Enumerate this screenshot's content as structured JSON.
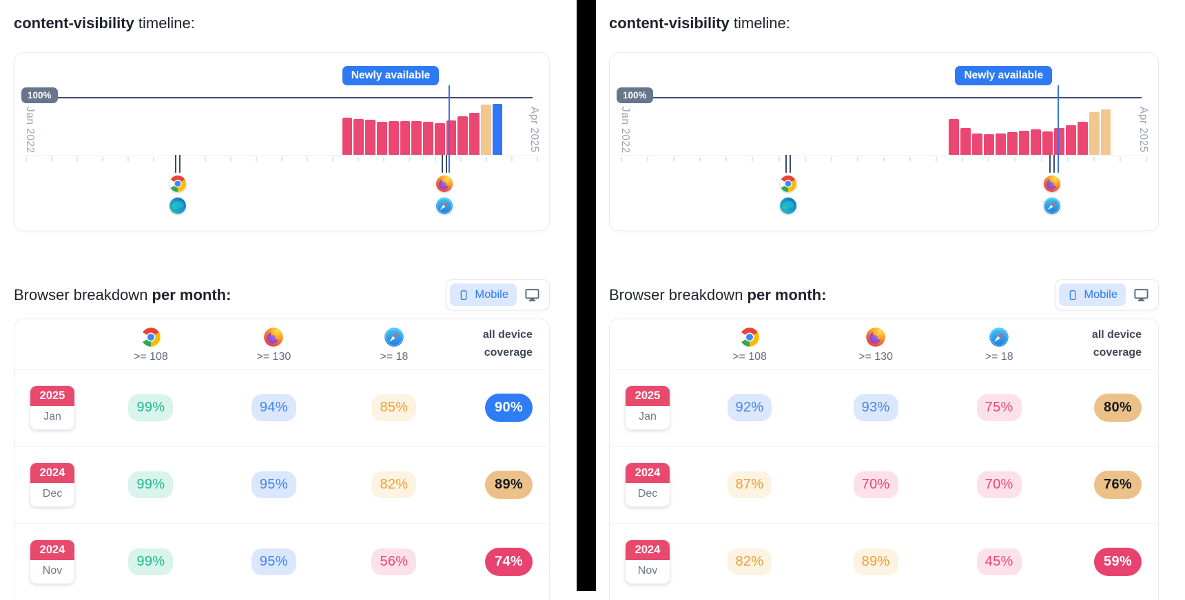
{
  "colors": {
    "accent_blue": "#2e7af5",
    "bar_pink": "#ec4672",
    "bar_tan": "#f2c68f",
    "bar_blue": "#3076f5",
    "navy_line": "#3b4a68",
    "gray_badge": "#68768b",
    "year_badge_pink": "#e84a6e",
    "tone_green": "#1db992",
    "tone_blue": "#4285f4",
    "tone_orange": "#f59d31",
    "tone_pink": "#f0437a",
    "solid_tan": "#ecc189",
    "divider_black": "#000000"
  },
  "chart_data": [
    {
      "type": "bar",
      "title": "content-visibility timeline (left panel)",
      "x_range": [
        "Jan 2022",
        "Apr 2025"
      ],
      "reference_line": {
        "label": "100%",
        "value": 100
      },
      "annotation": "Newly available",
      "values": [
        66,
        63,
        62,
        59,
        60,
        60,
        60,
        58,
        56,
        61,
        68,
        74,
        89,
        90
      ],
      "bar_colors": [
        "pink",
        "pink",
        "pink",
        "pink",
        "pink",
        "pink",
        "pink",
        "pink",
        "pink",
        "pink",
        "pink",
        "pink",
        "tan",
        "blue"
      ],
      "browser_markers": [
        {
          "browsers": [
            "chrome",
            "edge"
          ],
          "position_pct": 30.5
        },
        {
          "browsers": [
            "firefox",
            "safari"
          ],
          "position_pct": 80.4
        }
      ]
    },
    {
      "type": "bar",
      "title": "content-visibility timeline (right panel)",
      "x_range": [
        "Jan 2022",
        "Apr 2025"
      ],
      "reference_line": {
        "label": "100%",
        "value": 100
      },
      "annotation": "Newly available",
      "values": [
        64,
        47,
        38,
        36,
        38,
        40,
        43,
        45,
        42,
        47,
        53,
        59,
        76,
        80
      ],
      "bar_colors": [
        "pink",
        "pink",
        "pink",
        "pink",
        "pink",
        "pink",
        "pink",
        "pink",
        "pink",
        "pink",
        "pink",
        "pink",
        "tan",
        "tan"
      ],
      "browser_markers": [
        {
          "browsers": [
            "chrome",
            "edge"
          ],
          "position_pct": 32.5
        },
        {
          "browsers": [
            "firefox",
            "safari"
          ],
          "position_pct": 80.7
        }
      ]
    },
    {
      "type": "table",
      "title": "Browser breakdown per month (left panel, Mobile)",
      "columns": [
        "month",
        "chrome >= 108",
        "firefox >= 130",
        "safari >= 18",
        "all device coverage"
      ],
      "rows": [
        [
          "Jan 2025",
          "99%",
          "94%",
          "85%",
          "90%"
        ],
        [
          "Dec 2024",
          "99%",
          "95%",
          "82%",
          "89%"
        ],
        [
          "Nov 2024",
          "99%",
          "95%",
          "56%",
          "74%"
        ]
      ]
    },
    {
      "type": "table",
      "title": "Browser breakdown per month (right panel, Mobile)",
      "columns": [
        "month",
        "chrome >= 108",
        "firefox >= 130",
        "safari >= 18",
        "all device coverage"
      ],
      "rows": [
        [
          "Jan 2025",
          "92%",
          "93%",
          "75%",
          "80%"
        ],
        [
          "Dec 2024",
          "87%",
          "70%",
          "70%",
          "76%"
        ],
        [
          "Nov 2024",
          "82%",
          "89%",
          "45%",
          "59%"
        ]
      ]
    }
  ],
  "panels": [
    {
      "heading": {
        "code": "content-visibility",
        "rest": " timeline:"
      },
      "timeline": {
        "badge": "Newly available",
        "y_label": "100%",
        "x_start": "Jan 2022",
        "x_end": "Apr 2025",
        "badge_left_pct": 61.3,
        "annotation_x_pct": 81.2,
        "bars_left_pct": 61.3,
        "bars_width_pct": 30.0,
        "bars": [
          {
            "v": 66,
            "c": "pink"
          },
          {
            "v": 63,
            "c": "pink"
          },
          {
            "v": 62,
            "c": "pink"
          },
          {
            "v": 59,
            "c": "pink"
          },
          {
            "v": 60,
            "c": "pink"
          },
          {
            "v": 60,
            "c": "pink"
          },
          {
            "v": 60,
            "c": "pink"
          },
          {
            "v": 58,
            "c": "pink"
          },
          {
            "v": 56,
            "c": "pink"
          },
          {
            "v": 61,
            "c": "pink"
          },
          {
            "v": 68,
            "c": "pink"
          },
          {
            "v": 74,
            "c": "pink"
          },
          {
            "v": 89,
            "c": "tan"
          },
          {
            "v": 90,
            "c": "blue"
          }
        ],
        "markers": [
          {
            "x_pct": 30.5,
            "icons": [
              "chrome",
              "edge"
            ]
          },
          {
            "x_pct": 80.4,
            "icons": [
              "firefox",
              "safari"
            ]
          }
        ]
      },
      "breakdown": {
        "heading_pre": "Browser breakdown ",
        "heading_bold": "per month:",
        "toggle": {
          "mobile": "Mobile"
        },
        "table": {
          "columns": [
            {
              "browser": "chrome",
              "version": ">= 108"
            },
            {
              "browser": "firefox",
              "version": ">= 130"
            },
            {
              "browser": "safari",
              "version": ">= 18"
            }
          ],
          "coverage_header_line1": "all device",
          "coverage_header_line2": "coverage",
          "rows": [
            {
              "year": "2025",
              "month": "Jan",
              "cells": [
                {
                  "v": "99%",
                  "tone": "green"
                },
                {
                  "v": "94%",
                  "tone": "blue"
                },
                {
                  "v": "85%",
                  "tone": "orange"
                }
              ],
              "coverage": {
                "v": "90%",
                "tone": "solid-blue"
              }
            },
            {
              "year": "2024",
              "month": "Dec",
              "cells": [
                {
                  "v": "99%",
                  "tone": "green"
                },
                {
                  "v": "95%",
                  "tone": "blue"
                },
                {
                  "v": "82%",
                  "tone": "orange"
                }
              ],
              "coverage": {
                "v": "89%",
                "tone": "solid-tan"
              }
            },
            {
              "year": "2024",
              "month": "Nov",
              "cells": [
                {
                  "v": "99%",
                  "tone": "green"
                },
                {
                  "v": "95%",
                  "tone": "blue"
                },
                {
                  "v": "56%",
                  "tone": "pink"
                }
              ],
              "coverage": {
                "v": "74%",
                "tone": "solid-pink"
              }
            }
          ]
        }
      }
    },
    {
      "heading": {
        "code": "content-visibility",
        "rest": " timeline:"
      },
      "timeline": {
        "badge": "Newly available",
        "y_label": "100%",
        "x_start": "Jan 2022",
        "x_end": "Apr 2025",
        "badge_left_pct": 63.0,
        "annotation_x_pct": 81.6,
        "bars_left_pct": 61.8,
        "bars_width_pct": 29.6,
        "bars": [
          {
            "v": 64,
            "c": "pink"
          },
          {
            "v": 47,
            "c": "pink"
          },
          {
            "v": 38,
            "c": "pink"
          },
          {
            "v": 36,
            "c": "pink"
          },
          {
            "v": 38,
            "c": "pink"
          },
          {
            "v": 40,
            "c": "pink"
          },
          {
            "v": 43,
            "c": "pink"
          },
          {
            "v": 45,
            "c": "pink"
          },
          {
            "v": 42,
            "c": "pink"
          },
          {
            "v": 47,
            "c": "pink"
          },
          {
            "v": 53,
            "c": "pink"
          },
          {
            "v": 59,
            "c": "pink"
          },
          {
            "v": 76,
            "c": "tan"
          },
          {
            "v": 80,
            "c": "tan"
          }
        ],
        "markers": [
          {
            "x_pct": 32.5,
            "icons": [
              "chrome",
              "edge"
            ]
          },
          {
            "x_pct": 80.7,
            "icons": [
              "firefox",
              "safari"
            ]
          }
        ]
      },
      "breakdown": {
        "heading_pre": "Browser breakdown ",
        "heading_bold": "per month:",
        "toggle": {
          "mobile": "Mobile"
        },
        "table": {
          "columns": [
            {
              "browser": "chrome",
              "version": ">= 108"
            },
            {
              "browser": "firefox",
              "version": ">= 130"
            },
            {
              "browser": "safari",
              "version": ">= 18"
            }
          ],
          "coverage_header_line1": "all device",
          "coverage_header_line2": "coverage",
          "rows": [
            {
              "year": "2025",
              "month": "Jan",
              "cells": [
                {
                  "v": "92%",
                  "tone": "blue"
                },
                {
                  "v": "93%",
                  "tone": "blue"
                },
                {
                  "v": "75%",
                  "tone": "pink"
                }
              ],
              "coverage": {
                "v": "80%",
                "tone": "solid-tan"
              }
            },
            {
              "year": "2024",
              "month": "Dec",
              "cells": [
                {
                  "v": "87%",
                  "tone": "orange"
                },
                {
                  "v": "70%",
                  "tone": "pink"
                },
                {
                  "v": "70%",
                  "tone": "pink"
                }
              ],
              "coverage": {
                "v": "76%",
                "tone": "solid-tan"
              }
            },
            {
              "year": "2024",
              "month": "Nov",
              "cells": [
                {
                  "v": "82%",
                  "tone": "orange"
                },
                {
                  "v": "89%",
                  "tone": "orange"
                },
                {
                  "v": "45%",
                  "tone": "pink"
                }
              ],
              "coverage": {
                "v": "59%",
                "tone": "solid-pink"
              }
            }
          ]
        }
      }
    }
  ]
}
